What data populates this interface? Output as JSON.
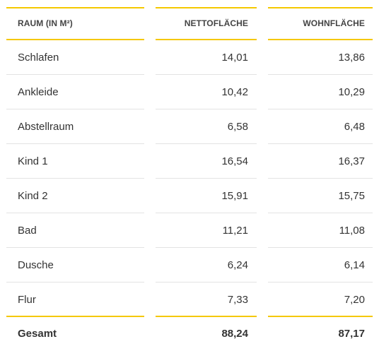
{
  "table": {
    "header": {
      "room": "RAUM (IN M²)",
      "net": "NETTOFLÄCHE",
      "living": "WOHNFLÄCHE"
    },
    "rows": [
      {
        "room": "Schlafen",
        "net": "14,01",
        "living": "13,86"
      },
      {
        "room": "Ankleide",
        "net": "10,42",
        "living": "10,29"
      },
      {
        "room": "Abstellraum",
        "net": "6,58",
        "living": "6,48"
      },
      {
        "room": "Kind 1",
        "net": "16,54",
        "living": "16,37"
      },
      {
        "room": "Kind 2",
        "net": "15,91",
        "living": "15,75"
      },
      {
        "room": "Bad",
        "net": "11,21",
        "living": "11,08"
      },
      {
        "room": "Dusche",
        "net": "6,24",
        "living": "6,14"
      },
      {
        "room": "Flur",
        "net": "7,33",
        "living": "7,20"
      }
    ],
    "total": {
      "room": "Gesamt",
      "net": "88,24",
      "living": "87,17"
    }
  },
  "colors": {
    "accent": "#f5c800",
    "divider": "#e3e3e3",
    "text": "#333333"
  }
}
